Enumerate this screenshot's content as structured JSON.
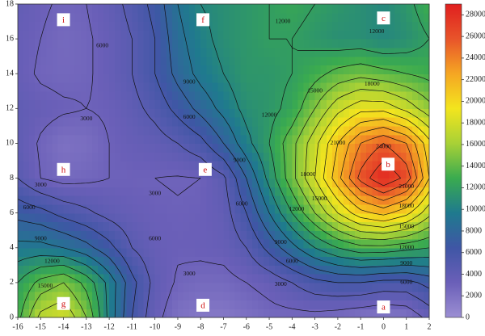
{
  "chart_data": {
    "type": "contour",
    "x": [
      -16,
      -15,
      -14,
      -13,
      -12,
      -11,
      -10,
      -9,
      -8,
      -7,
      -6,
      -5,
      -4,
      -3,
      -2,
      -1,
      0,
      1,
      2
    ],
    "y": [
      0,
      2,
      4,
      6,
      8,
      10,
      12,
      14,
      16,
      18
    ],
    "z": [
      [
        13000,
        17000,
        18000,
        15000,
        10000,
        6000,
        3500,
        2000,
        1500,
        1500,
        2000,
        2500,
        2500,
        2500,
        2200,
        1800,
        1500,
        1800,
        3500
      ],
      [
        12000,
        14000,
        15000,
        13000,
        10000,
        6500,
        4000,
        2800,
        2500,
        2500,
        3000,
        3500,
        4500,
        5500,
        6000,
        6000,
        5500,
        5500,
        6500
      ],
      [
        9500,
        9500,
        9000,
        8000,
        6500,
        4500,
        3500,
        3200,
        3300,
        3500,
        4500,
        6500,
        8500,
        10500,
        12000,
        13000,
        13000,
        12500,
        12000
      ],
      [
        7000,
        6500,
        5500,
        4800,
        4000,
        3500,
        3200,
        3100,
        3200,
        3800,
        6000,
        9000,
        12000,
        15000,
        18000,
        20500,
        21500,
        20000,
        17000
      ],
      [
        4500,
        3000,
        2500,
        2700,
        3000,
        3000,
        3000,
        2900,
        3000,
        4200,
        7500,
        11000,
        14500,
        18000,
        22000,
        26000,
        28500,
        26500,
        21000
      ],
      [
        4000,
        2800,
        2000,
        2200,
        3000,
        3500,
        3800,
        4500,
        5500,
        7500,
        10000,
        12000,
        14500,
        17500,
        21000,
        24000,
        25500,
        24000,
        20000
      ],
      [
        4000,
        3500,
        3200,
        3000,
        3200,
        4000,
        5000,
        6500,
        8000,
        9500,
        11000,
        11500,
        12500,
        15000,
        17500,
        19000,
        19000,
        17500,
        15500
      ],
      [
        3500,
        2800,
        2600,
        2800,
        3500,
        4500,
        6000,
        8000,
        9500,
        10500,
        11500,
        11500,
        12000,
        13000,
        14000,
        14500,
        14000,
        13500,
        13000
      ],
      [
        3500,
        3000,
        2500,
        2800,
        3500,
        4500,
        6000,
        8500,
        10000,
        11000,
        11500,
        12000,
        12000,
        11500,
        11000,
        11000,
        10500,
        11000,
        12000
      ],
      [
        3800,
        3200,
        2800,
        3000,
        3800,
        5000,
        6500,
        9000,
        10500,
        11000,
        11500,
        12000,
        12500,
        12000,
        11500,
        11000,
        10500,
        11500,
        13000
      ]
    ],
    "xlim": [
      -16,
      2
    ],
    "xticks": [
      -16,
      -15,
      -14,
      -13,
      -12,
      -11,
      -10,
      -9,
      -8,
      -7,
      -6,
      -5,
      -4,
      -3,
      -2,
      -1,
      0,
      1,
      2
    ],
    "ylim": [
      0,
      18
    ],
    "yticks": [
      0,
      2,
      4,
      6,
      8,
      10,
      12,
      14,
      16,
      18
    ],
    "clim": [
      0,
      29000
    ],
    "zticks": [
      0,
      2000,
      4000,
      6000,
      8000,
      10000,
      12000,
      14000,
      16000,
      18000,
      20000,
      22000,
      24000,
      26000,
      28000
    ],
    "colormap": [
      "#9c8fd3",
      "#6a5fb8",
      "#3f56a5",
      "#1f7a8e",
      "#3aab4f",
      "#a8d136",
      "#f3e51e",
      "#f5a623",
      "#e8542a",
      "#e01f1f"
    ],
    "levels": [
      1500,
      3000,
      4500,
      6000,
      7500,
      9000,
      10500,
      12000,
      13500,
      15000,
      16500,
      18000,
      19500,
      21000,
      22500,
      24000,
      25500,
      27000,
      28500
    ],
    "line_color": "#111111",
    "contour_labels": [
      {
        "value": 6000,
        "x": -12.3,
        "y": 15.6
      },
      {
        "value": 9000,
        "x": -8.5,
        "y": 13.5
      },
      {
        "value": 6000,
        "x": -8.5,
        "y": 11.5
      },
      {
        "value": 3000,
        "x": -13,
        "y": 11.4
      },
      {
        "value": 3000,
        "x": -15,
        "y": 7.6
      },
      {
        "value": 3000,
        "x": -10,
        "y": 7.1
      },
      {
        "value": 9000,
        "x": -6.3,
        "y": 9
      },
      {
        "value": 12000,
        "x": -4.4,
        "y": 17
      },
      {
        "value": 12000,
        "x": -5,
        "y": 11.6
      },
      {
        "value": 15000,
        "x": -3,
        "y": 13
      },
      {
        "value": 18000,
        "x": -0.5,
        "y": 13.4
      },
      {
        "value": 21000,
        "x": -2,
        "y": 10
      },
      {
        "value": 24000,
        "x": 0,
        "y": 9.8
      },
      {
        "value": 18000,
        "x": -3.3,
        "y": 8.2
      },
      {
        "value": 15000,
        "x": -2.8,
        "y": 6.8
      },
      {
        "value": 12000,
        "x": -3.8,
        "y": 6.2
      },
      {
        "value": 21000,
        "x": 1,
        "y": 7.5
      },
      {
        "value": 18000,
        "x": 1,
        "y": 6.4
      },
      {
        "value": 15000,
        "x": 1,
        "y": 5.2
      },
      {
        "value": 12000,
        "x": 1,
        "y": 4
      },
      {
        "value": 9000,
        "x": 1,
        "y": 3.1
      },
      {
        "value": 6000,
        "x": 1,
        "y": 2
      },
      {
        "value": 3000,
        "x": -4.5,
        "y": 1.9
      },
      {
        "value": 6000,
        "x": -4,
        "y": 3.2
      },
      {
        "value": 9000,
        "x": -4.5,
        "y": 4.3
      },
      {
        "value": 6000,
        "x": -15.5,
        "y": 6.3
      },
      {
        "value": 9000,
        "x": -15,
        "y": 4.5
      },
      {
        "value": 12000,
        "x": -14.5,
        "y": 3.2
      },
      {
        "value": 15000,
        "x": -14.8,
        "y": 1.8
      },
      {
        "value": 3000,
        "x": -8.5,
        "y": 2.5
      },
      {
        "value": 6000,
        "x": -10,
        "y": 4.5
      },
      {
        "value": 6000,
        "x": -6.2,
        "y": 6.5
      },
      {
        "value": 12000,
        "x": -0.3,
        "y": 16.4
      }
    ],
    "annotations": [
      {
        "text": "a",
        "x": 0,
        "y": 0.6
      },
      {
        "text": "b",
        "x": 0.2,
        "y": 8.8
      },
      {
        "text": "c",
        "x": 0,
        "y": 17.2
      },
      {
        "text": "d",
        "x": -7.9,
        "y": 0.7
      },
      {
        "text": "e",
        "x": -7.8,
        "y": 8.5
      },
      {
        "text": "f",
        "x": -7.9,
        "y": 17.1
      },
      {
        "text": "g",
        "x": -14,
        "y": 0.8
      },
      {
        "text": "h",
        "x": -14,
        "y": 8.5
      },
      {
        "text": "i",
        "x": -14,
        "y": 17.1
      }
    ]
  }
}
